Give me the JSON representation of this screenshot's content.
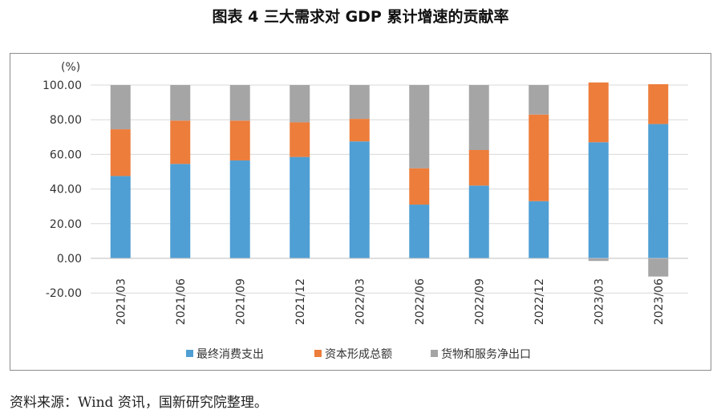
{
  "title": "图表 4 三大需求对 GDP 累计增速的贡献率",
  "source": "资料来源：Wind 资讯，国新研究院整理。",
  "chart_data": {
    "type": "bar",
    "stacked": true,
    "unit_label": "(%)",
    "ylim": [
      -20,
      100
    ],
    "yticks": [
      "100.00",
      "80.00",
      "60.00",
      "40.00",
      "20.00",
      "0.00",
      "-20.00"
    ],
    "categories": [
      "2021/03",
      "2021/06",
      "2021/09",
      "2021/12",
      "2022/03",
      "2022/06",
      "2022/09",
      "2022/12",
      "2023/03",
      "2023/06"
    ],
    "series": [
      {
        "name": "最终消费支出",
        "color": "#4f9fd4",
        "values": [
          47.5,
          54.5,
          56.5,
          58.5,
          67.5,
          31,
          42,
          33,
          67,
          77.5
        ]
      },
      {
        "name": "资本形成总额",
        "color": "#ed7d3b",
        "values": [
          27,
          25,
          23,
          20,
          13,
          21,
          20.5,
          50,
          34.5,
          23
        ]
      },
      {
        "name": "货物和服务净出口",
        "color": "#a5a5a5",
        "values": [
          25.5,
          20.5,
          20.5,
          21.5,
          19.5,
          48,
          37.5,
          17,
          -1.5,
          -10.5
        ]
      }
    ],
    "grid": true,
    "legend_position": "bottom"
  }
}
